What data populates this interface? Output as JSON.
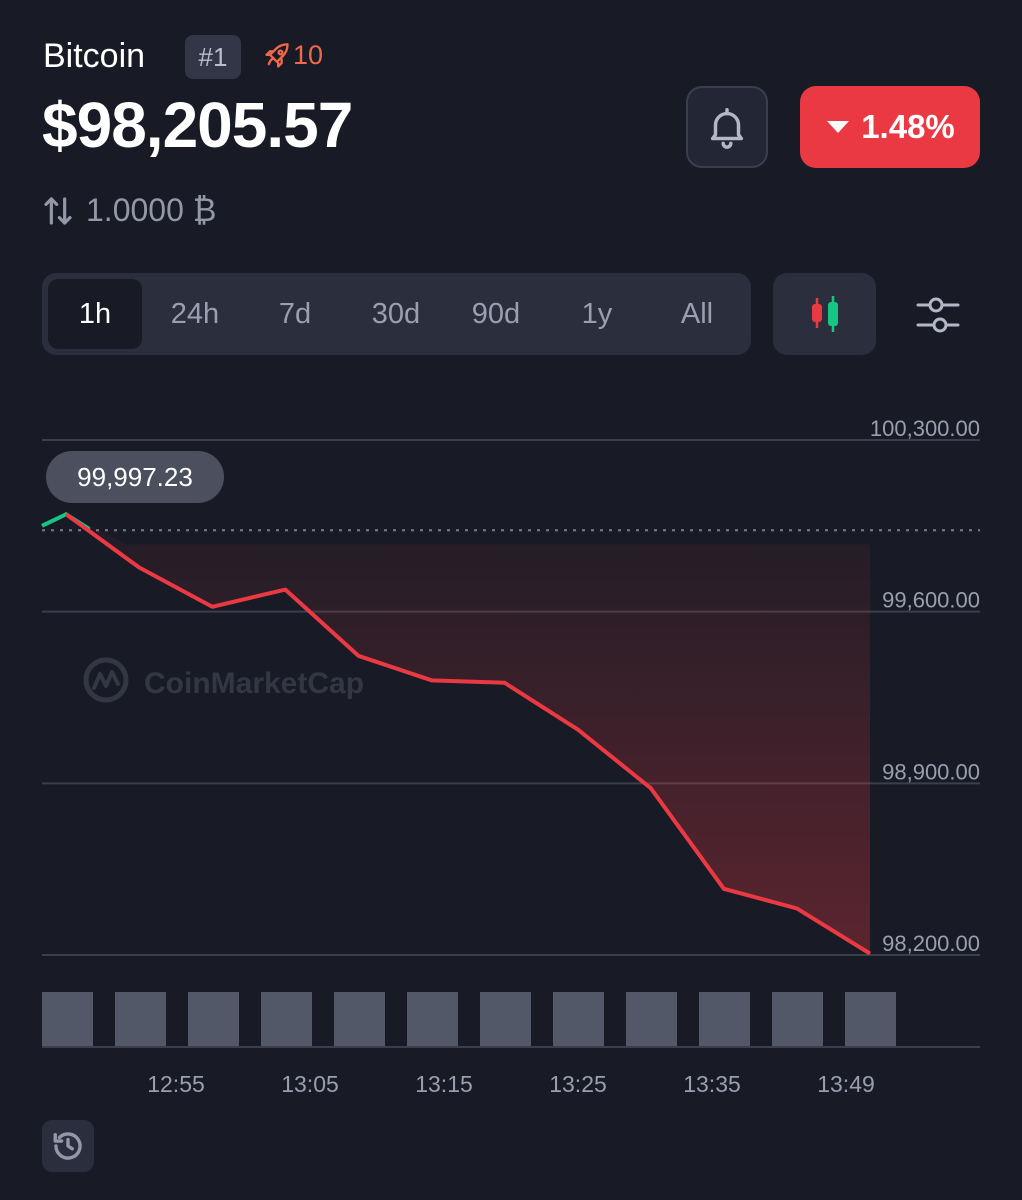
{
  "coin": {
    "name": "Bitcoin",
    "rank": "#1",
    "watchlist_count": "10",
    "price": "$98,205.57",
    "change": "1.48%",
    "conversion": "1.0000 ₿"
  },
  "range_tabs": [
    "1h",
    "24h",
    "7d",
    "30d",
    "90d",
    "1y",
    "All"
  ],
  "active_range": "1h",
  "icons": {
    "rank": "none",
    "rocket": "rocket-icon",
    "bell": "bell-icon",
    "change": "triangle-down-icon",
    "conversion": "swap-arrows-icon",
    "chart_type": "candlestick-icon",
    "settings": "sliders-icon",
    "history": "history-icon"
  },
  "colors": {
    "background": "#181b25",
    "down": "#ea3943",
    "up": "#16c784",
    "volume_bar": "#535869",
    "grid": "#3a3e4d"
  },
  "chart_data": {
    "type": "line",
    "watermark": "CoinMarketCap",
    "tooltip_label": "99,997.23",
    "y_ticks": [
      "100,300.00",
      "99,600.00",
      "98,900.00",
      "98,200.00"
    ],
    "y_tick_values": [
      100300,
      99600,
      98900,
      98200
    ],
    "ylim": [
      98200,
      100300
    ],
    "x_ticks": [
      "12:55",
      "13:05",
      "13:15",
      "13:25",
      "13:35",
      "13:49"
    ],
    "reference_price": 99997.23,
    "series": [
      {
        "values": [
          99950,
          99997.23,
          99780,
          99620,
          99690,
          99420,
          99320,
          99310,
          99120,
          98880,
          98470,
          98390,
          98205.57
        ]
      }
    ],
    "volume": [
      1,
      1,
      1,
      1,
      1,
      1,
      1,
      1,
      1,
      1,
      1,
      1
    ],
    "grid": true
  }
}
